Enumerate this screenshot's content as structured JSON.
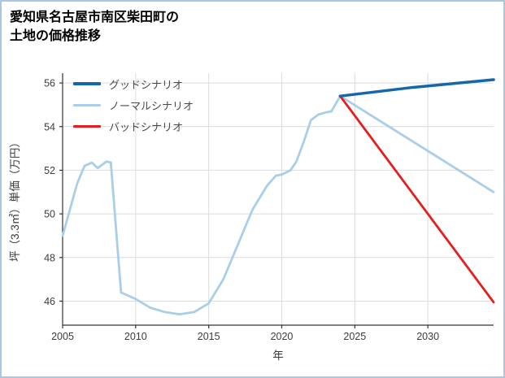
{
  "page": {
    "title_line1": "愛知県名古屋市南区柴田町の",
    "title_line2": "土地の価格推移"
  },
  "chart_data": {
    "type": "line",
    "title": "愛知県名古屋市南区柴田町の土地の価格推移",
    "xlabel": "年",
    "ylabel": "坪（3.3㎡）単価（万円）",
    "xlim": [
      2005,
      2034.5
    ],
    "ylim": [
      44.9,
      56.45
    ],
    "xticks": [
      2005,
      2010,
      2015,
      2020,
      2025,
      2030
    ],
    "yticks": [
      46,
      48,
      50,
      52,
      54,
      56
    ],
    "grid": true,
    "grid_color": "#dcdcdc",
    "axis_color": "#333333",
    "tick_label_color": "#3c3c3c",
    "legend_position": "upper-left",
    "series": [
      {
        "name": "グッドシナリオ",
        "slug": "good-scenario",
        "color": "#1467ad",
        "width": 3.5,
        "zorder": 3,
        "x": [
          2024,
          2029,
          2034.5
        ],
        "y": [
          55.4,
          55.8,
          56.15
        ]
      },
      {
        "name": "ノーマルシナリオ",
        "slug": "normal-scenario",
        "color": "#a9cfe8",
        "width": 2.8,
        "zorder": 1,
        "x": [
          2005,
          2006,
          2006.5,
          2007,
          2007.4,
          2008,
          2008.3,
          2009,
          2010,
          2011,
          2012,
          2013,
          2014,
          2015,
          2016,
          2017,
          2018,
          2019,
          2019.6,
          2020,
          2020.6,
          2021,
          2021.5,
          2022,
          2022.5,
          2023,
          2023.4,
          2024,
          2034.5
        ],
        "y": [
          49.0,
          51.4,
          52.2,
          52.35,
          52.1,
          52.4,
          52.35,
          46.4,
          46.1,
          45.7,
          45.5,
          45.4,
          45.5,
          45.9,
          47.0,
          48.6,
          50.2,
          51.3,
          51.75,
          51.8,
          52.0,
          52.4,
          53.3,
          54.3,
          54.55,
          54.65,
          54.7,
          55.4,
          51.0
        ]
      },
      {
        "name": "バッドシナリオ",
        "slug": "bad-scenario",
        "color": "#e81c1c",
        "width": 2.8,
        "zorder": 2,
        "x": [
          2024,
          2034.5
        ],
        "y": [
          55.4,
          45.95
        ]
      }
    ]
  }
}
